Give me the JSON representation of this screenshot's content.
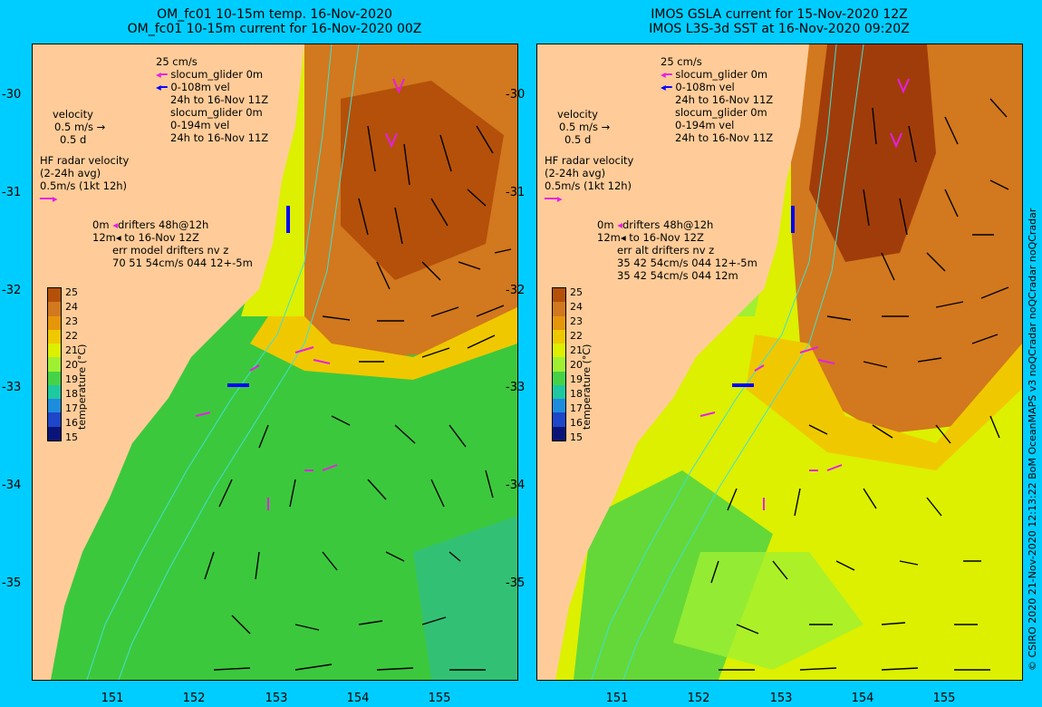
{
  "left_panel": {
    "title_line1": "OM_fc01 10-15m temp. 16-Nov-2020",
    "title_line2": "OM_fc01 10-15m current for 16-Nov-2020 00Z",
    "legend": {
      "glider_speed": "25 cm/s",
      "glider_line1": "slocum_glider 0m",
      "glider_line2": "0-108m vel",
      "glider_line3": "24h to 16-Nov 11Z",
      "glider_line4": "slocum_glider 0m",
      "glider_line5": "0-194m vel",
      "glider_line6": "24h to 16-Nov 11Z",
      "velocity_title": "velocity",
      "velocity_scale": "0.5 m/s",
      "velocity_time": "0.5 d",
      "hf_line1": "HF radar velocity",
      "hf_line2": "(2-24h avg)",
      "hf_line3": "0.5m/s (1kt 12h)",
      "drifter_line1a": "0m",
      "drifter_line1b": "drifters 48h@12h",
      "drifter_line2a": "12m",
      "drifter_line2b": "to 16-Nov 12Z",
      "drifter_line3": "err model drifters nv z",
      "drifter_line4": "70 51 54cm/s 044 12+-5m"
    }
  },
  "right_panel": {
    "title_line1": "IMOS GSLA current for 15-Nov-2020 12Z",
    "title_line2": "IMOS L3S-3d SST at 16-Nov-2020 09:20Z",
    "legend": {
      "glider_speed": "25 cm/s",
      "glider_line1": "slocum_glider 0m",
      "glider_line2": "0-108m vel",
      "glider_line3": "24h to 16-Nov 11Z",
      "glider_line4": "slocum_glider 0m",
      "glider_line5": "0-194m vel",
      "glider_line6": "24h to 16-Nov 11Z",
      "velocity_title": "velocity",
      "velocity_scale": "0.5 m/s",
      "velocity_time": "0.5 d",
      "hf_line1": "HF radar velocity",
      "hf_line2": "(2-24h avg)",
      "hf_line3": "0.5m/s (1kt 12h)",
      "drifter_line1a": "0m",
      "drifter_line1b": "drifters 48h@12h",
      "drifter_line2a": "12m",
      "drifter_line2b": "to 16-Nov 12Z",
      "drifter_line3": "err alt drifters nv z",
      "drifter_line4": "35 42 54cm/s 044 12+-5m",
      "drifter_line5": "35 42 54cm/s 044 12m"
    }
  },
  "axes": {
    "latitudes": [
      "-30",
      "-31",
      "-32",
      "-33",
      "-34",
      "-35"
    ],
    "longitudes": [
      "151",
      "152",
      "153",
      "154",
      "155"
    ]
  },
  "colorbar": {
    "title": "temperature (°C)",
    "ticks": [
      "25",
      "24",
      "23",
      "22",
      "21",
      "20",
      "19",
      "18",
      "17",
      "16",
      "15"
    ],
    "colors": [
      "#b4500a",
      "#d2781e",
      "#e6960a",
      "#f0c800",
      "#dcf000",
      "#a0f032",
      "#46d246",
      "#1ec8a0",
      "#1e8cdc",
      "#1e46c8",
      "#0a1478"
    ]
  },
  "colors": {
    "background": "#00cdff",
    "land": "#ffcc99",
    "cold_water": "#3cc83c",
    "warm_water": "#d2781e",
    "glider_magenta": "#e61ee6",
    "glider_blue": "#0000ff",
    "isobath": "#40e0d0"
  },
  "credit": "© CSIRO 2020   21-Nov-2020 12:13:22 BoM OceanMAPS v3 noQCradar noQCradar noQCradar"
}
